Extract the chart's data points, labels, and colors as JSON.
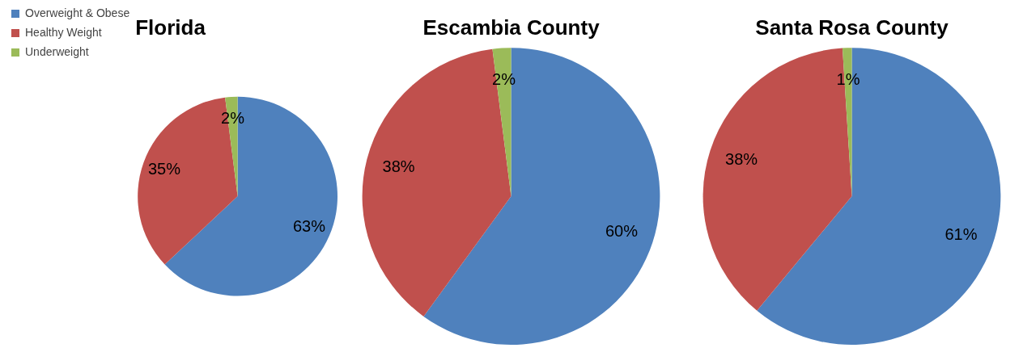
{
  "chart_data": [
    {
      "type": "pie",
      "title": "Florida",
      "categories": [
        "Overweight & Obese",
        "Healthy Weight",
        "Underweight"
      ],
      "values": [
        63,
        35,
        2
      ],
      "colors": [
        "#4f81bd",
        "#c0504d",
        "#9bbb59"
      ],
      "value_labels": [
        "63%",
        "35%",
        "2%"
      ],
      "legend": "top left"
    },
    {
      "type": "pie",
      "title": "Escambia County",
      "values": [
        60,
        38,
        2
      ],
      "colors": [
        "#4f81bd",
        "#c0504d",
        "#9bbb59"
      ],
      "value_labels": [
        "60%",
        "38%",
        "2%"
      ]
    },
    {
      "type": "pie",
      "title": "Santa Rosa County",
      "values": [
        61,
        38,
        1
      ],
      "colors": [
        "#4f81bd",
        "#c0504d",
        "#9bbb59"
      ],
      "value_labels": [
        "61%",
        "38%",
        "1%"
      ]
    }
  ]
}
